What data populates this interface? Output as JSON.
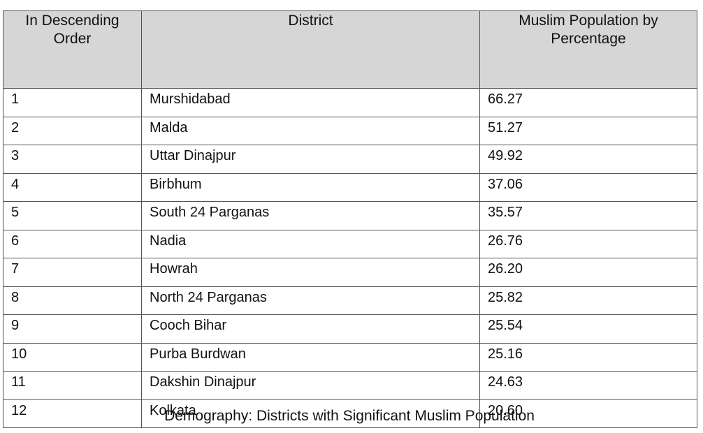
{
  "table": {
    "headers": [
      "In Descending Order",
      "District",
      "Muslim Population by Percentage"
    ],
    "rows": [
      [
        "1",
        "Murshidabad",
        "66.27"
      ],
      [
        "2",
        "Malda",
        "51.27"
      ],
      [
        "3",
        "Uttar Dinajpur",
        "49.92"
      ],
      [
        "4",
        "Birbhum",
        "37.06"
      ],
      [
        "5",
        "South 24 Parganas",
        "35.57"
      ],
      [
        "6",
        "Nadia",
        "26.76"
      ],
      [
        "7",
        "Howrah",
        "26.20"
      ],
      [
        "8",
        "North 24 Parganas",
        "25.82"
      ],
      [
        "9",
        "Cooch Bihar",
        "25.54"
      ],
      [
        "10",
        "Purba Burdwan",
        "25.16"
      ],
      [
        "11",
        "Dakshin Dinajpur",
        "24.63"
      ],
      [
        "12",
        "Kolkata",
        "20.60"
      ]
    ]
  },
  "caption": "Demography: Districts with Significant Muslim Population",
  "colors": {
    "header_background": "#d6d6d6",
    "border": "#555555",
    "text": "#111111"
  }
}
